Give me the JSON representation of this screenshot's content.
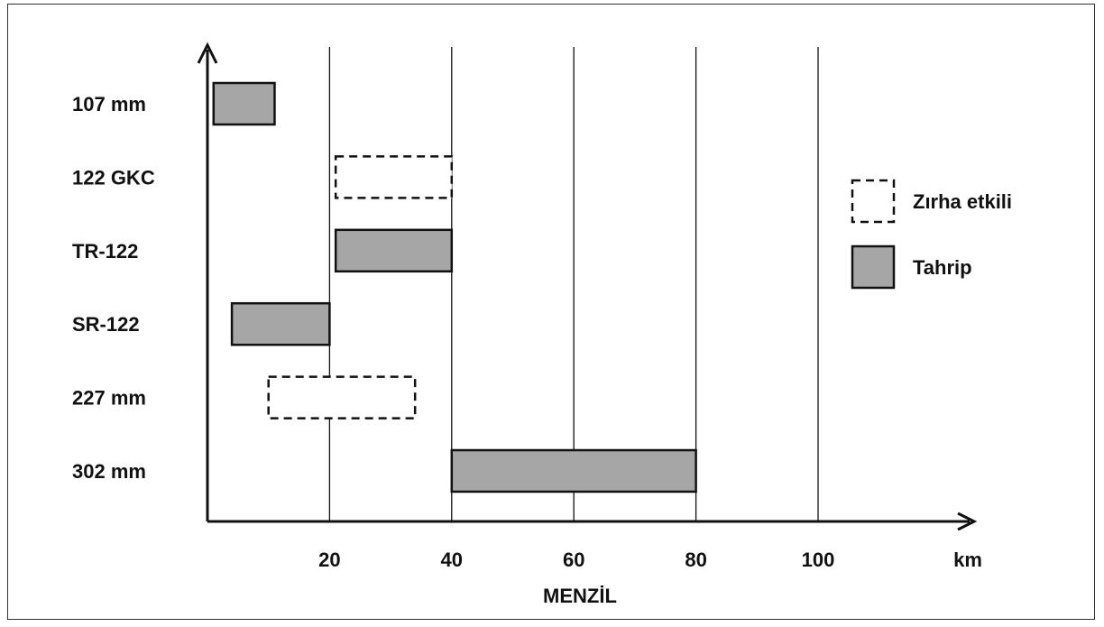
{
  "chart_data": {
    "type": "bar",
    "orientation": "horizontal-range",
    "xlabel": "MENZİL",
    "x_unit": "km",
    "x_ticks": [
      20,
      40,
      60,
      80,
      100
    ],
    "xlim": [
      0,
      118
    ],
    "grid": "vertical lines at x ticks",
    "legend_placement": "right",
    "categories": [
      "107 mm",
      "122 GKC",
      "TR-122",
      "SR-122",
      "227 mm",
      "302 mm"
    ],
    "series": [
      {
        "name": "Zırha etkili",
        "style": "dashed-outline",
        "color": "#ffffff",
        "ranges": [
          null,
          [
            21,
            40
          ],
          null,
          null,
          [
            10,
            34
          ],
          null
        ]
      },
      {
        "name": "Tahrip",
        "style": "filled",
        "color": "#a6a6a6",
        "ranges": [
          [
            1,
            11
          ],
          null,
          [
            21,
            40
          ],
          [
            4,
            20
          ],
          null,
          [
            40,
            80
          ]
        ]
      }
    ]
  }
}
